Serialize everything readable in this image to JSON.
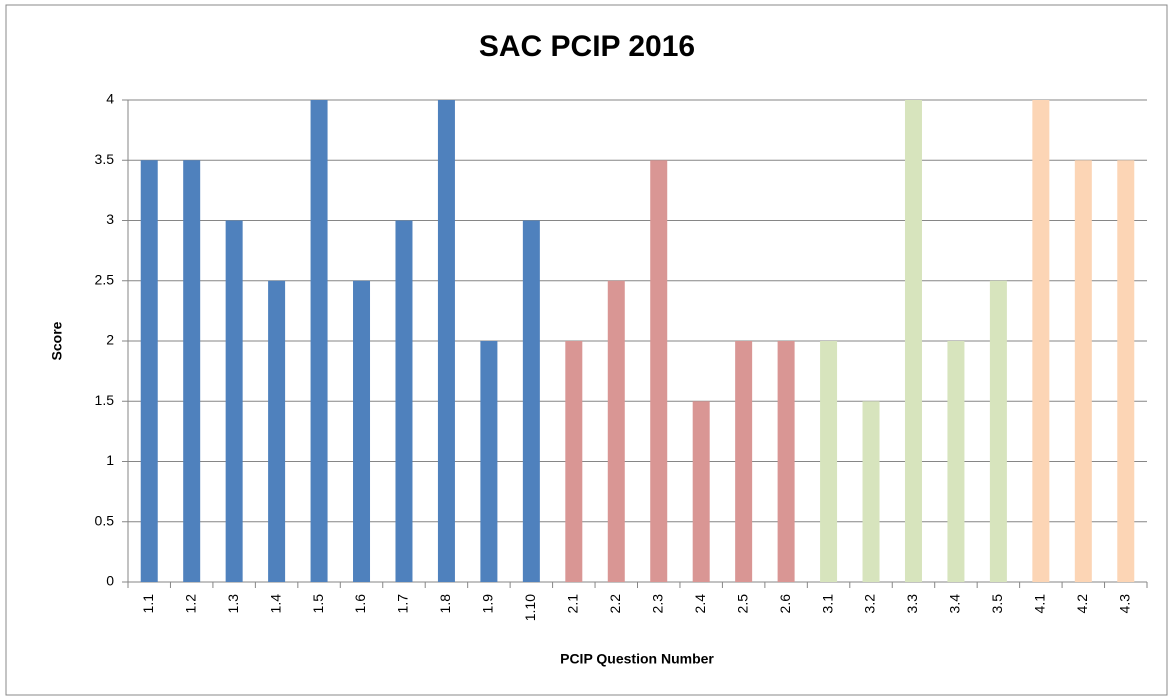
{
  "chart_data": {
    "type": "bar",
    "title": "SAC PCIP 2016",
    "x_label": "PCIP Question Number",
    "y_label": "Score",
    "categories": [
      "1.1",
      "1.2",
      "1.3",
      "1.4",
      "1.5",
      "1.6",
      "1.7",
      "1.8",
      "1.9",
      "1.10",
      "2.1",
      "2.2",
      "2.3",
      "2.4",
      "2.5",
      "2.6",
      "3.1",
      "3.2",
      "3.3",
      "3.4",
      "3.5",
      "4.1",
      "4.2",
      "4.3"
    ],
    "values": [
      3.5,
      3.5,
      3,
      2.5,
      4,
      2.5,
      3,
      4,
      2,
      3,
      2,
      2.5,
      3.5,
      1.5,
      2,
      2,
      2,
      1.5,
      4,
      2,
      2.5,
      4,
      3.5,
      3.5
    ],
    "colors": [
      "#4f81bd",
      "#4f81bd",
      "#4f81bd",
      "#4f81bd",
      "#4f81bd",
      "#4f81bd",
      "#4f81bd",
      "#4f81bd",
      "#4f81bd",
      "#4f81bd",
      "#d99694",
      "#d99694",
      "#d99694",
      "#d99694",
      "#d99694",
      "#d99694",
      "#d7e4bd",
      "#d7e4bd",
      "#d7e4bd",
      "#d7e4bd",
      "#d7e4bd",
      "#fcd5b5",
      "#fcd5b5",
      "#fcd5b5"
    ],
    "ylim": [
      0,
      4
    ],
    "yticks": [
      0,
      0.5,
      1,
      1.5,
      2,
      2.5,
      3,
      3.5,
      4
    ],
    "grid": true
  }
}
